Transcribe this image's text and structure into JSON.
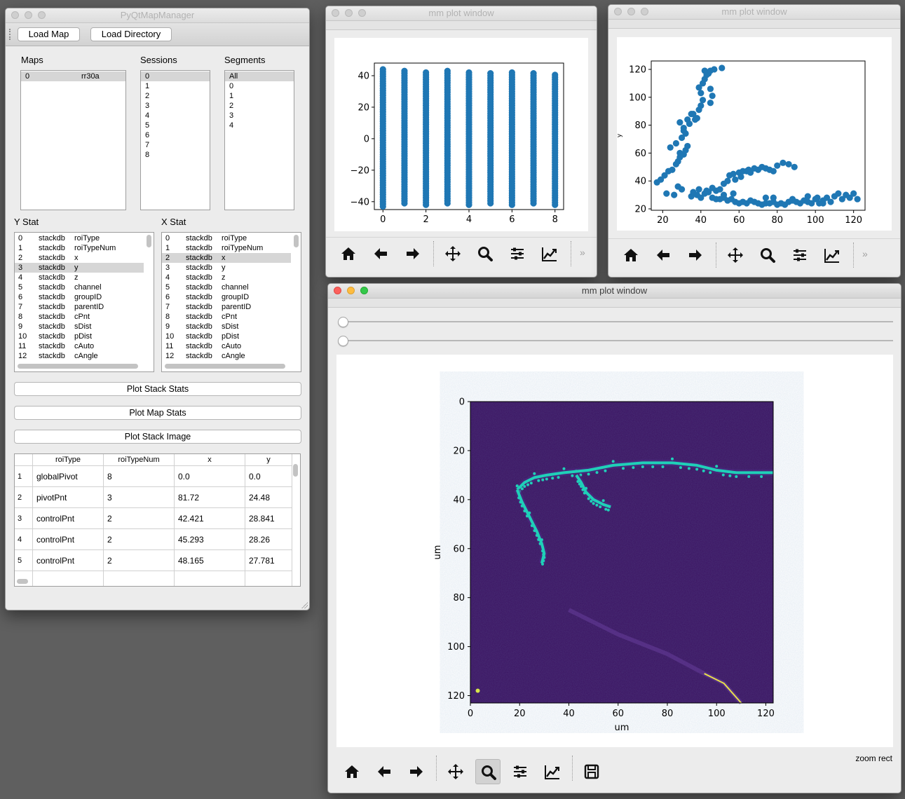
{
  "manager": {
    "title": "PyQtMapManager",
    "load_map_label": "Load Map",
    "load_directory_label": "Load Directory",
    "maps_label": "Maps",
    "sessions_label": "Sessions",
    "segments_label": "Segments",
    "maps": [
      {
        "index": "0",
        "name": "rr30a"
      }
    ],
    "sessions": [
      "0",
      "1",
      "2",
      "3",
      "4",
      "5",
      "6",
      "7",
      "8"
    ],
    "segments": [
      "All",
      "0",
      "1",
      "2",
      "3",
      "4"
    ],
    "y_stat_label": "Y Stat",
    "x_stat_label": "X Stat",
    "stats": [
      {
        "i": "0",
        "db": "stackdb",
        "name": "roiType"
      },
      {
        "i": "1",
        "db": "stackdb",
        "name": "roiTypeNum"
      },
      {
        "i": "2",
        "db": "stackdb",
        "name": "x"
      },
      {
        "i": "3",
        "db": "stackdb",
        "name": "y"
      },
      {
        "i": "4",
        "db": "stackdb",
        "name": "z"
      },
      {
        "i": "5",
        "db": "stackdb",
        "name": "channel"
      },
      {
        "i": "6",
        "db": "stackdb",
        "name": "groupID"
      },
      {
        "i": "7",
        "db": "stackdb",
        "name": "parentID"
      },
      {
        "i": "8",
        "db": "stackdb",
        "name": "cPnt"
      },
      {
        "i": "9",
        "db": "stackdb",
        "name": "sDist"
      },
      {
        "i": "10",
        "db": "stackdb",
        "name": "pDist"
      },
      {
        "i": "11",
        "db": "stackdb",
        "name": "cAuto"
      },
      {
        "i": "12",
        "db": "stackdb",
        "name": "cAngle"
      }
    ],
    "y_selected": 3,
    "x_selected": 2,
    "plot_stack_stats_label": "Plot Stack Stats",
    "plot_map_stats_label": "Plot Map Stats",
    "plot_stack_image_label": "Plot Stack Image",
    "table": {
      "headers": [
        "roiType",
        "roiTypeNum",
        "x",
        "y"
      ],
      "rows": [
        {
          "n": "1",
          "roiType": "globalPivot",
          "roiTypeNum": "8",
          "x": "0.0",
          "y": "0.0"
        },
        {
          "n": "2",
          "roiType": "pivotPnt",
          "roiTypeNum": "3",
          "x": "81.72",
          "y": "24.48"
        },
        {
          "n": "3",
          "roiType": "controlPnt",
          "roiTypeNum": "2",
          "x": "42.421",
          "y": "28.841"
        },
        {
          "n": "4",
          "roiType": "controlPnt",
          "roiTypeNum": "2",
          "x": "45.293",
          "y": "28.26"
        },
        {
          "n": "5",
          "roiType": "controlPnt",
          "roiTypeNum": "2",
          "x": "48.165",
          "y": "27.781"
        }
      ]
    }
  },
  "plot1": {
    "title": "mm plot window"
  },
  "plot2": {
    "title": "mm plot window"
  },
  "plot3": {
    "title": "mm plot window",
    "status": "zoom rect"
  },
  "chart_data": [
    {
      "type": "scatter",
      "title": "",
      "xlabel": "",
      "ylabel": "",
      "xlim": [
        -0.4,
        8.4
      ],
      "ylim": [
        -45,
        48
      ],
      "xticks": [
        "0",
        "2",
        "4",
        "6",
        "8"
      ],
      "yticks": [
        "−40",
        "−20",
        "0",
        "20",
        "40"
      ],
      "series": [
        {
          "color": "#1f77b4",
          "x": [
            0,
            1,
            2,
            3,
            4,
            5,
            6,
            7,
            8
          ],
          "y_min": [
            -43,
            -41,
            -42,
            -41,
            -42,
            -41,
            -42,
            -41,
            -42
          ],
          "y_max": [
            44,
            43,
            43,
            43,
            42,
            42,
            42,
            42,
            41
          ]
        }
      ]
    },
    {
      "type": "scatter",
      "title": "",
      "xlabel": "",
      "ylabel": "y",
      "xlim": [
        14,
        126
      ],
      "ylim": [
        19,
        126
      ],
      "xticks": [
        "20",
        "40",
        "60",
        "80",
        "100",
        "120"
      ],
      "yticks": [
        "20",
        "40",
        "60",
        "80",
        "100",
        "120"
      ],
      "series": [
        {
          "color": "#1f77b4",
          "points": [
            [
              17,
              39
            ],
            [
              19,
              41
            ],
            [
              21,
              44
            ],
            [
              22,
              31
            ],
            [
              23,
              47
            ],
            [
              25,
              48
            ],
            [
              26,
              30
            ],
            [
              27,
              52
            ],
            [
              28,
              54
            ],
            [
              29,
              57
            ],
            [
              24,
              64
            ],
            [
              27,
              67
            ],
            [
              29,
              60
            ],
            [
              31,
              59
            ],
            [
              32,
              62
            ],
            [
              33,
              65
            ],
            [
              30,
              71
            ],
            [
              32,
              74
            ],
            [
              31,
              78
            ],
            [
              34,
              81
            ],
            [
              33,
              84
            ],
            [
              35,
              88
            ],
            [
              36,
              88
            ],
            [
              37,
              84
            ],
            [
              38,
              85
            ],
            [
              39,
              91
            ],
            [
              40,
              94
            ],
            [
              41,
              98
            ],
            [
              40,
              103
            ],
            [
              39,
              107
            ],
            [
              41,
              110
            ],
            [
              42,
              113
            ],
            [
              43,
              116
            ],
            [
              44,
              117
            ],
            [
              42,
              119
            ],
            [
              45,
              119
            ],
            [
              47,
              120
            ],
            [
              51,
              121
            ],
            [
              45,
              106
            ],
            [
              46,
              101
            ],
            [
              45,
              96
            ],
            [
              28,
              36
            ],
            [
              30,
              34
            ],
            [
              29,
              82
            ],
            [
              31,
              76
            ],
            [
              35,
              29
            ],
            [
              38,
              30
            ],
            [
              40,
              28
            ],
            [
              42,
              31
            ],
            [
              44,
              32
            ],
            [
              46,
              28
            ],
            [
              48,
              27
            ],
            [
              50,
              27
            ],
            [
              52,
              28
            ],
            [
              54,
              26
            ],
            [
              56,
              27
            ],
            [
              58,
              25
            ],
            [
              60,
              24
            ],
            [
              62,
              25
            ],
            [
              64,
              24
            ],
            [
              66,
              26
            ],
            [
              68,
              25
            ],
            [
              70,
              24
            ],
            [
              72,
              23
            ],
            [
              74,
              24
            ],
            [
              76,
              24
            ],
            [
              78,
              25
            ],
            [
              80,
              23
            ],
            [
              82,
              24
            ],
            [
              84,
              23
            ],
            [
              86,
              25
            ],
            [
              88,
              27
            ],
            [
              90,
              25
            ],
            [
              92,
              24
            ],
            [
              94,
              26
            ],
            [
              96,
              25
            ],
            [
              98,
              24
            ],
            [
              100,
              27
            ],
            [
              102,
              24
            ],
            [
              104,
              26
            ],
            [
              106,
              28
            ],
            [
              108,
              25
            ],
            [
              110,
              29
            ],
            [
              112,
              31
            ],
            [
              114,
              27
            ],
            [
              116,
              30
            ],
            [
              118,
              28
            ],
            [
              120,
              31
            ],
            [
              122,
              27
            ],
            [
              36,
              32
            ],
            [
              39,
              34
            ],
            [
              43,
              33
            ],
            [
              46,
              35
            ],
            [
              48,
              33
            ],
            [
              52,
              30
            ],
            [
              57,
              31
            ],
            [
              50,
              34
            ],
            [
              52,
              38
            ],
            [
              54,
              40
            ],
            [
              55,
              44
            ],
            [
              57,
              45
            ],
            [
              58,
              41
            ],
            [
              60,
              46
            ],
            [
              61,
              43
            ],
            [
              62,
              47
            ],
            [
              64,
              47
            ],
            [
              65,
              48
            ],
            [
              66,
              46
            ],
            [
              68,
              49
            ],
            [
              70,
              48
            ],
            [
              72,
              50
            ],
            [
              74,
              49
            ],
            [
              76,
              48
            ],
            [
              78,
              47
            ],
            [
              80,
              51
            ],
            [
              83,
              53
            ],
            [
              86,
              52
            ],
            [
              89,
              50
            ],
            [
              74,
              28
            ],
            [
              78,
              28
            ],
            [
              88,
              26
            ],
            [
              96,
              29
            ],
            [
              101,
              28
            ],
            [
              104,
              24
            ]
          ]
        }
      ]
    },
    {
      "type": "heatmap",
      "title": "",
      "xlabel": "um",
      "ylabel": "um",
      "xlim": [
        0,
        123
      ],
      "ylim": [
        123,
        0
      ],
      "xticks": [
        "0",
        "20",
        "40",
        "60",
        "80",
        "100",
        "120"
      ],
      "yticks": [
        "0",
        "20",
        "40",
        "60",
        "80",
        "100",
        "120"
      ],
      "colormap": "viridis",
      "background_color": "#3b1261",
      "trace_color": "#1fd0b8",
      "segments": [
        {
          "points": [
            [
              19,
              36
            ],
            [
              22,
              33
            ],
            [
              26,
              31
            ],
            [
              31,
              30
            ],
            [
              38,
              29
            ],
            [
              48,
              28
            ],
            [
              58,
              26
            ],
            [
              70,
              25
            ],
            [
              82,
              25
            ],
            [
              92,
              26
            ],
            [
              100,
              28
            ],
            [
              108,
              29
            ],
            [
              123,
              29
            ]
          ]
        },
        {
          "points": [
            [
              19,
              36
            ],
            [
              21,
              41
            ],
            [
              24,
              47
            ],
            [
              27,
              53
            ],
            [
              29,
              58
            ],
            [
              30,
              62
            ],
            [
              29,
              66
            ]
          ]
        },
        {
          "points": [
            [
              43,
              30
            ],
            [
              45,
              33
            ],
            [
              47,
              37
            ],
            [
              50,
              40
            ],
            [
              54,
              42
            ],
            [
              57,
              43
            ]
          ]
        }
      ]
    }
  ]
}
